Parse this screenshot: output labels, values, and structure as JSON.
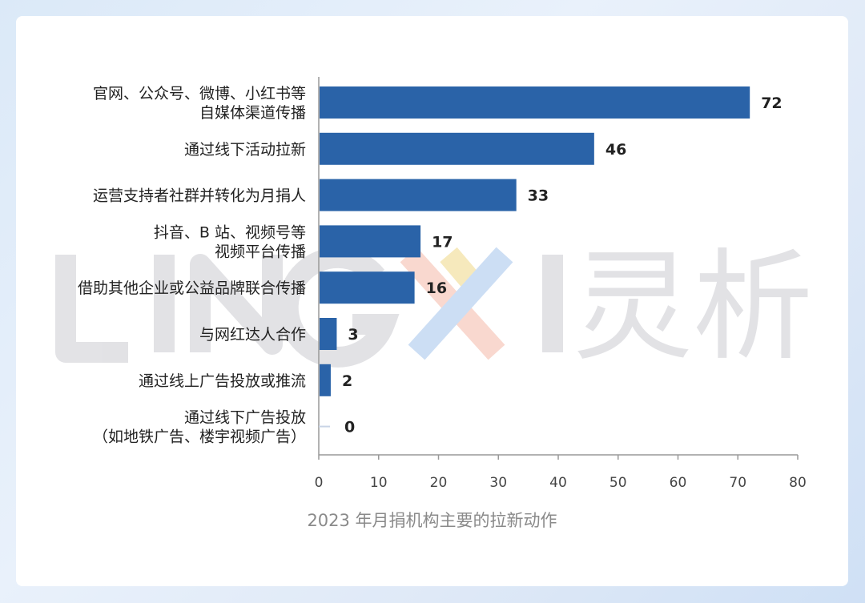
{
  "chart_data": {
    "type": "bar",
    "orientation": "horizontal",
    "categories": [
      [
        "官网、公众号、微博、小红书等",
        "自媒体渠道传播"
      ],
      [
        "通过线下活动拉新"
      ],
      [
        "运营支持者社群并转化为月捐人"
      ],
      [
        "抖音、B 站、视频号等",
        "视频平台传播"
      ],
      [
        "借助其他企业或公益品牌联合传播"
      ],
      [
        "与网红达人合作"
      ],
      [
        "通过线上广告投放或推流"
      ],
      [
        "通过线下广告投放",
        "（如地铁广告、楼宇视频广告）"
      ]
    ],
    "values": [
      72,
      46,
      33,
      17,
      16,
      3,
      2,
      0
    ],
    "xlim": [
      0,
      80
    ],
    "xticks": [
      0,
      10,
      20,
      30,
      40,
      50,
      60,
      70,
      80
    ],
    "bar_color": "#2a63a8",
    "zero_bar_color": "#c9d4e6",
    "title": "2023 年月捐机构主要的拉新动作",
    "grid": false
  },
  "watermark": {
    "latin": "LINGXI",
    "chinese": "灵析",
    "color": "#d8d8dc"
  }
}
